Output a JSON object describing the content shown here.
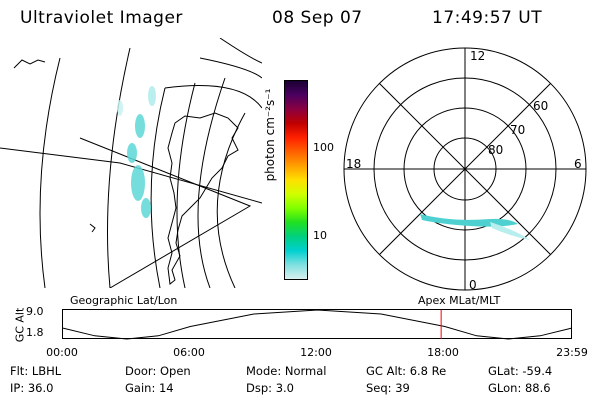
{
  "header": {
    "instrument": "Ultraviolet Imager",
    "date": "08 Sep 07",
    "time": "17:49:57 UT"
  },
  "colorbar": {
    "unit_label": "photon cm⁻²s⁻¹",
    "tick_100": "100",
    "tick_10": "10",
    "colors": [
      "#1a0033",
      "#4b0060",
      "#8b0040",
      "#c00000",
      "#ff2000",
      "#ff6000",
      "#ffa000",
      "#ffe000",
      "#d0ff00",
      "#80ff00",
      "#20e020",
      "#00d080",
      "#00d0d0",
      "#80e0e0",
      "#d8f0f0"
    ]
  },
  "polar_plot": {
    "mlt_top": "12",
    "mlt_left": "18",
    "mlt_right": "6",
    "mlt_bottom": "0",
    "lat_60": "60",
    "lat_70": "70",
    "lat_80": "80"
  },
  "timeline": {
    "left_label": "Geographic Lat/Lon",
    "right_label": "Apex MLat/MLT",
    "axis_label": "GC Alt",
    "y_max": "9.0",
    "y_min": "1.8",
    "x_ticks": [
      "00:00",
      "06:00",
      "12:00",
      "18:00",
      "23:59"
    ],
    "cursor_color": "#ff0000",
    "orbit_altitudes_re": [
      {
        "t": 0.0,
        "alt": 4.5
      },
      {
        "t": 1.5,
        "alt": 2.6
      },
      {
        "t": 3.0,
        "alt": 1.8
      },
      {
        "t": 4.5,
        "alt": 2.6
      },
      {
        "t": 6.0,
        "alt": 4.9
      },
      {
        "t": 9.0,
        "alt": 8.0
      },
      {
        "t": 12.0,
        "alt": 9.0
      },
      {
        "t": 15.0,
        "alt": 8.0
      },
      {
        "t": 18.0,
        "alt": 4.9
      },
      {
        "t": 19.5,
        "alt": 2.6
      },
      {
        "t": 21.0,
        "alt": 1.8
      },
      {
        "t": 22.5,
        "alt": 2.6
      },
      {
        "t": 23.98,
        "alt": 4.5
      }
    ],
    "cursor_time_h": 17.83
  },
  "info": {
    "row1": [
      {
        "label": "Flt:",
        "value": "LBHL"
      },
      {
        "label": "Door:",
        "value": "Open"
      },
      {
        "label": "Mode:",
        "value": "Normal"
      },
      {
        "label": "GC Alt:",
        "value": "6.8 Re"
      },
      {
        "label": "GLat:",
        "value": "-59.4"
      }
    ],
    "row2": [
      {
        "label": "IP:",
        "value": "36.0"
      },
      {
        "label": "Gain:",
        "value": "14"
      },
      {
        "label": "Dsp:",
        "value": "3.0"
      },
      {
        "label": "Seq:",
        "value": "39"
      },
      {
        "label": "GLon:",
        "value": "88.6"
      }
    ]
  }
}
